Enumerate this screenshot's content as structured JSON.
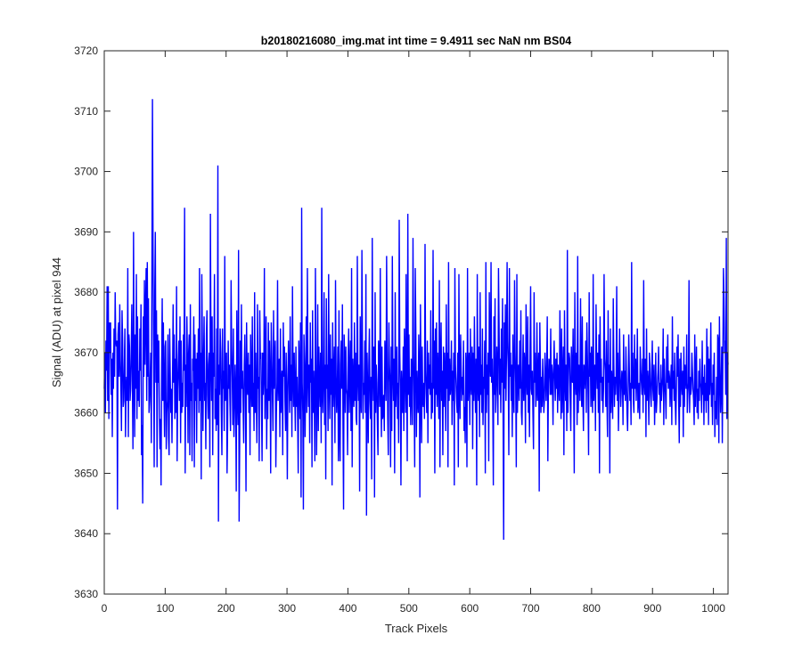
{
  "chart_data": {
    "type": "line",
    "title": "b20180216080_img.mat int time = 9.4911 sec  NaN nm BS04",
    "xlabel": "Track Pixels",
    "ylabel": "Signal (ADU) at pixel 944",
    "xlim": [
      0,
      1024
    ],
    "ylim": [
      3630,
      3720
    ],
    "xticks": [
      "0",
      "100",
      "200",
      "300",
      "400",
      "500",
      "600",
      "700",
      "800",
      "900",
      "1000"
    ],
    "yticks": [
      "3630",
      "3640",
      "3650",
      "3660",
      "3670",
      "3680",
      "3690",
      "3700",
      "3710",
      "3720"
    ],
    "grid": false,
    "line_color": "#0000ff",
    "series": [
      {
        "values": [
          3664,
          3670,
          3660,
          3672,
          3667,
          3681,
          3662,
          3681,
          3659,
          3675,
          3670,
          3675,
          3663,
          3669,
          3656,
          3670,
          3664,
          3674,
          3666,
          3680,
          3672,
          3671,
          3672,
          3644,
          3673,
          3675,
          3666,
          3678,
          3669,
          3664,
          3657,
          3677,
          3672,
          3661,
          3662,
          3668,
          3674,
          3656,
          3664,
          3666,
          3662,
          3684,
          3656,
          3673,
          3671,
          3662,
          3664,
          3670,
          3678,
          3665,
          3654,
          3690,
          3667,
          3656,
          3673,
          3664,
          3683,
          3659,
          3676,
          3662,
          3667,
          3661,
          3674,
          3667,
          3678,
          3653,
          3658,
          3645,
          3676,
          3666,
          3682,
          3668,
          3677,
          3684,
          3662,
          3685,
          3666,
          3679,
          3660,
          3662,
          3666,
          3670,
          3655,
          3682,
          3712,
          3688,
          3669,
          3651,
          3680,
          3690,
          3665,
          3677,
          3651,
          3673,
          3665,
          3672,
          3660,
          3654,
          3659,
          3648,
          3668,
          3679,
          3662,
          3675,
          3664,
          3656,
          3671,
          3672,
          3654,
          3660,
          3662,
          3673,
          3656,
          3653,
          3674,
          3666,
          3660,
          3664,
          3655,
          3666,
          3678,
          3665,
          3673,
          3659,
          3669,
          3660,
          3681,
          3652,
          3664,
          3668,
          3672,
          3662,
          3676,
          3655,
          3672,
          3660,
          3665,
          3661,
          3673,
          3667,
          3694,
          3650,
          3668,
          3661,
          3676,
          3668,
          3655,
          3670,
          3673,
          3653,
          3678,
          3662,
          3665,
          3652,
          3669,
          3667,
          3676,
          3651,
          3673,
          3662,
          3669,
          3655,
          3670,
          3664,
          3674,
          3660,
          3684,
          3662,
          3670,
          3649,
          3683,
          3671,
          3657,
          3668,
          3676,
          3662,
          3665,
          3654,
          3673,
          3677,
          3663,
          3659,
          3668,
          3670,
          3651,
          3693,
          3669,
          3662,
          3676,
          3653,
          3670,
          3666,
          3683,
          3659,
          3664,
          3657,
          3674,
          3658,
          3701,
          3642,
          3668,
          3663,
          3674,
          3670,
          3660,
          3653,
          3674,
          3664,
          3667,
          3657,
          3686,
          3662,
          3664,
          3670,
          3650,
          3658,
          3672,
          3664,
          3668,
          3662,
          3657,
          3682,
          3671,
          3666,
          3658,
          3674,
          3656,
          3661,
          3668,
          3663,
          3647,
          3677,
          3663,
          3658,
          3687,
          3642,
          3655,
          3672,
          3660,
          3678,
          3664,
          3667,
          3661,
          3655,
          3668,
          3673,
          3664,
          3647,
          3675,
          3665,
          3663,
          3670,
          3660,
          3668,
          3653,
          3673,
          3665,
          3661,
          3676,
          3661,
          3665,
          3657,
          3680,
          3660,
          3670,
          3662,
          3655,
          3678,
          3664,
          3666,
          3652,
          3677,
          3669,
          3670,
          3661,
          3652,
          3670,
          3663,
          3666,
          3684,
          3659,
          3667,
          3676,
          3654,
          3664,
          3659,
          3675,
          3662,
          3672,
          3666,
          3650,
          3675,
          3669,
          3663,
          3657,
          3677,
          3664,
          3668,
          3672,
          3651,
          3660,
          3665,
          3682,
          3662,
          3667,
          3669,
          3656,
          3674,
          3660,
          3665,
          3667,
          3653,
          3675,
          3666,
          3671,
          3662,
          3657,
          3670,
          3663,
          3649,
          3665,
          3672,
          3666,
          3660,
          3676,
          3662,
          3668,
          3656,
          3681,
          3666,
          3661,
          3670,
          3663,
          3657,
          3671,
          3661,
          3666,
          3659,
          3650,
          3672,
          3667,
          3659,
          3675,
          3646,
          3694,
          3665,
          3660,
          3644,
          3673,
          3668,
          3656,
          3666,
          3676,
          3660,
          3684,
          3666,
          3661,
          3668,
          3655,
          3675,
          3665,
          3669,
          3651,
          3677,
          3660,
          3667,
          3662,
          3652,
          3684,
          3668,
          3653,
          3663,
          3678,
          3657,
          3671,
          3665,
          3661,
          3670,
          3655,
          3694,
          3663,
          3660,
          3667,
          3680,
          3658,
          3668,
          3649,
          3679,
          3664,
          3668,
          3657,
          3683,
          3665,
          3659,
          3673,
          3663,
          3669,
          3648,
          3675,
          3661,
          3666,
          3671,
          3655,
          3682,
          3666,
          3660,
          3664,
          3671,
          3652,
          3677,
          3657,
          3652,
          3668,
          3672,
          3664,
          3678,
          3658,
          3644,
          3673,
          3669,
          3660,
          3671,
          3664,
          3663,
          3653,
          3669,
          3674,
          3660,
          3666,
          3672,
          3657,
          3684,
          3651,
          3669,
          3665,
          3661,
          3675,
          3662,
          3670,
          3659,
          3658,
          3686,
          3666,
          3662,
          3668,
          3647,
          3676,
          3663,
          3660,
          3687,
          3670,
          3659,
          3665,
          3663,
          3672,
          3660,
          3683,
          3643,
          3670,
          3664,
          3655,
          3668,
          3674,
          3662,
          3659,
          3666,
          3649,
          3689,
          3667,
          3662,
          3671,
          3646,
          3680,
          3660,
          3668,
          3665,
          3658,
          3653,
          3672,
          3669,
          3661,
          3684,
          3664,
          3656,
          3671,
          3659,
          3660,
          3663,
          3657,
          3672,
          3668,
          3662,
          3686,
          3671,
          3659,
          3653,
          3675,
          3668,
          3665,
          3651,
          3671,
          3657,
          3686,
          3667,
          3662,
          3669,
          3650,
          3680,
          3661,
          3666,
          3671,
          3659,
          3665,
          3655,
          3692,
          3670,
          3664,
          3648,
          3667,
          3663,
          3660,
          3671,
          3657,
          3674,
          3668,
          3660,
          3683,
          3666,
          3652,
          3693,
          3663,
          3673,
          3661,
          3666,
          3658,
          3669,
          3664,
          3658,
          3689,
          3670,
          3662,
          3651,
          3684,
          3673,
          3656,
          3667,
          3662,
          3660,
          3673,
          3668,
          3646,
          3678,
          3665,
          3655,
          3671,
          3662,
          3661,
          3665,
          3659,
          3688,
          3667,
          3663,
          3660,
          3672,
          3655,
          3670,
          3664,
          3668,
          3663,
          3677,
          3659,
          3665,
          3660,
          3687,
          3664,
          3672,
          3650,
          3674,
          3663,
          3675,
          3661,
          3670,
          3666,
          3659,
          3682,
          3651,
          3669,
          3675,
          3662,
          3667,
          3653,
          3671,
          3661,
          3670,
          3666,
          3657,
          3678,
          3664,
          3670,
          3651,
          3685,
          3662,
          3669,
          3663,
          3665,
          3672,
          3658,
          3667,
          3662,
          3670,
          3648,
          3684,
          3668,
          3665,
          3662,
          3660,
          3670,
          3651,
          3683,
          3664,
          3659,
          3673,
          3667,
          3662,
          3666,
          3663,
          3672,
          3657,
          3661,
          3655,
          3670,
          3667,
          3651,
          3684,
          3662,
          3666,
          3670,
          3658,
          3674,
          3665,
          3663,
          3671,
          3654,
          3670,
          3662,
          3676,
          3665,
          3660,
          3669,
          3648,
          3683,
          3665,
          3662,
          3671,
          3656,
          3680,
          3663,
          3668,
          3660,
          3674,
          3658,
          3666,
          3664,
          3672,
          3650,
          3685,
          3660,
          3668,
          3663,
          3670,
          3652,
          3680,
          3669,
          3666,
          3685,
          3665,
          3669,
          3662,
          3648,
          3676,
          3663,
          3679,
          3660,
          3664,
          3671,
          3667,
          3658,
          3684,
          3675,
          3663,
          3669,
          3660,
          3674,
          3665,
          3679,
          3660,
          3639,
          3675,
          3664,
          3678,
          3662,
          3670,
          3685,
          3672,
          3667,
          3653,
          3684,
          3666,
          3670,
          3662,
          3668,
          3656,
          3673,
          3664,
          3660,
          3682,
          3670,
          3665,
          3651,
          3683,
          3660,
          3666,
          3668,
          3662,
          3672,
          3664,
          3677,
          3660,
          3658,
          3666,
          3673,
          3662,
          3670,
          3668,
          3655,
          3678,
          3666,
          3663,
          3676,
          3660,
          3668,
          3656,
          3670,
          3681,
          3664,
          3663,
          3667,
          3660,
          3654,
          3680,
          3665,
          3670,
          3661,
          3664,
          3675,
          3662,
          3666,
          3670,
          3647,
          3675,
          3668,
          3660,
          3666,
          3661,
          3669,
          3664,
          3660,
          3662,
          3670,
          3666,
          3662,
          3668,
          3676,
          3652,
          3665,
          3669,
          3668,
          3663,
          3674,
          3663,
          3668,
          3666,
          3658,
          3667,
          3672,
          3666,
          3662,
          3669,
          3664,
          3670,
          3660,
          3668,
          3665,
          3662,
          3677,
          3667,
          3659,
          3674,
          3660,
          3666,
          3671,
          3653,
          3677,
          3666,
          3662,
          3668,
          3657,
          3687,
          3660,
          3668,
          3670,
          3669,
          3662,
          3657,
          3671,
          3666,
          3665,
          3674,
          3664,
          3650,
          3680,
          3666,
          3663,
          3670,
          3658,
          3686,
          3660,
          3668,
          3667,
          3662,
          3679,
          3666,
          3661,
          3676,
          3663,
          3657,
          3668,
          3664,
          3666,
          3672,
          3660,
          3675,
          3669,
          3663,
          3653,
          3680,
          3666,
          3670,
          3661,
          3671,
          3664,
          3660,
          3683,
          3662,
          3666,
          3668,
          3657,
          3678,
          3668,
          3664,
          3670,
          3660,
          3673,
          3650,
          3676,
          3665,
          3669,
          3662,
          3666,
          3660,
          3664,
          3683,
          3669,
          3667,
          3661,
          3672,
          3662,
          3656,
          3677,
          3665,
          3668,
          3650,
          3674,
          3660,
          3667,
          3664,
          3659,
          3679,
          3668,
          3661,
          3666,
          3663,
          3666,
          3681,
          3662,
          3670,
          3657,
          3663,
          3674,
          3667,
          3661,
          3664,
          3667,
          3666,
          3658,
          3673,
          3663,
          3667,
          3662,
          3671,
          3666,
          3660,
          3657,
          3664,
          3673,
          3667,
          3662,
          3665,
          3658,
          3685,
          3664,
          3670,
          3662,
          3660,
          3673,
          3664,
          3669,
          3662,
          3666,
          3674,
          3660,
          3662,
          3665,
          3659,
          3671,
          3667,
          3665,
          3663,
          3669,
          3660,
          3682,
          3665,
          3663,
          3669,
          3656,
          3674,
          3662,
          3667,
          3665,
          3658,
          3670,
          3668,
          3663,
          3661,
          3666,
          3672,
          3664,
          3662,
          3668,
          3658,
          3663,
          3670,
          3660,
          3662,
          3665,
          3667,
          3671,
          3663,
          3665,
          3660,
          3668,
          3662,
          3664,
          3666,
          3674,
          3658,
          3669,
          3665,
          3663,
          3659,
          3671,
          3665,
          3673,
          3664,
          3667,
          3666,
          3661,
          3665,
          3668,
          3658,
          3676,
          3664,
          3667,
          3662,
          3670,
          3662,
          3658,
          3664,
          3671,
          3666,
          3673,
          3662,
          3655,
          3669,
          3661,
          3670,
          3665,
          3663,
          3667,
          3656,
          3671,
          3661,
          3668,
          3666,
          3664,
          3673,
          3660,
          3663,
          3665,
          3682,
          3660,
          3666,
          3663,
          3664,
          3670,
          3667,
          3664,
          3662,
          3658,
          3673,
          3661,
          3666,
          3671,
          3660,
          3664,
          3659,
          3667,
          3662,
          3669,
          3665,
          3664,
          3660,
          3672,
          3663,
          3666,
          3658,
          3668,
          3662,
          3665,
          3660,
          3674,
          3662,
          3671,
          3658,
          3669,
          3663,
          3666,
          3675,
          3661,
          3665,
          3658,
          3668,
          3663,
          3670,
          3656,
          3662,
          3659,
          3666,
          3658,
          3673,
          3672,
          3655,
          3676,
          3667,
          3660,
          3664,
          3671,
          3655,
          3669,
          3684,
          3679,
          3670,
          3672,
          3663,
          3689,
          3659,
          3670,
          3668
        ]
      }
    ]
  }
}
